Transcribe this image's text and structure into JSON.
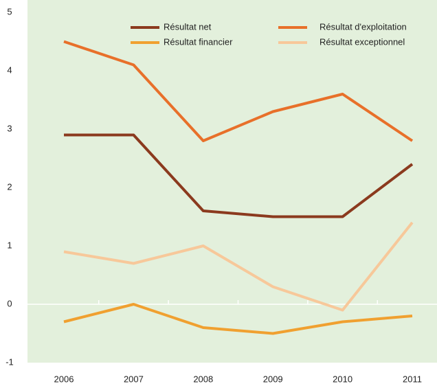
{
  "chart_data": {
    "type": "line",
    "categories": [
      "2006",
      "2007",
      "2008",
      "2009",
      "2010",
      "2011"
    ],
    "series": [
      {
        "name": "Résultat net",
        "color": "#8b3a1e",
        "values": [
          2.9,
          2.9,
          1.6,
          1.5,
          1.5,
          2.4
        ]
      },
      {
        "name": "Résultat d'exploitation",
        "color": "#e8702a",
        "values": [
          4.5,
          4.1,
          2.8,
          3.3,
          3.6,
          2.8
        ]
      },
      {
        "name": "Résultat financier",
        "color": "#f0a030",
        "values": [
          -0.3,
          0,
          -0.4,
          -0.5,
          -0.3,
          -0.2
        ]
      },
      {
        "name": "Résultat exceptionnel",
        "color": "#f7c89a",
        "values": [
          0.9,
          0.7,
          1.0,
          0.3,
          -0.1,
          1.4
        ]
      }
    ],
    "ylim": [
      -1,
      5
    ],
    "yticks": [
      -1,
      0,
      1,
      2,
      3,
      4,
      5
    ]
  }
}
